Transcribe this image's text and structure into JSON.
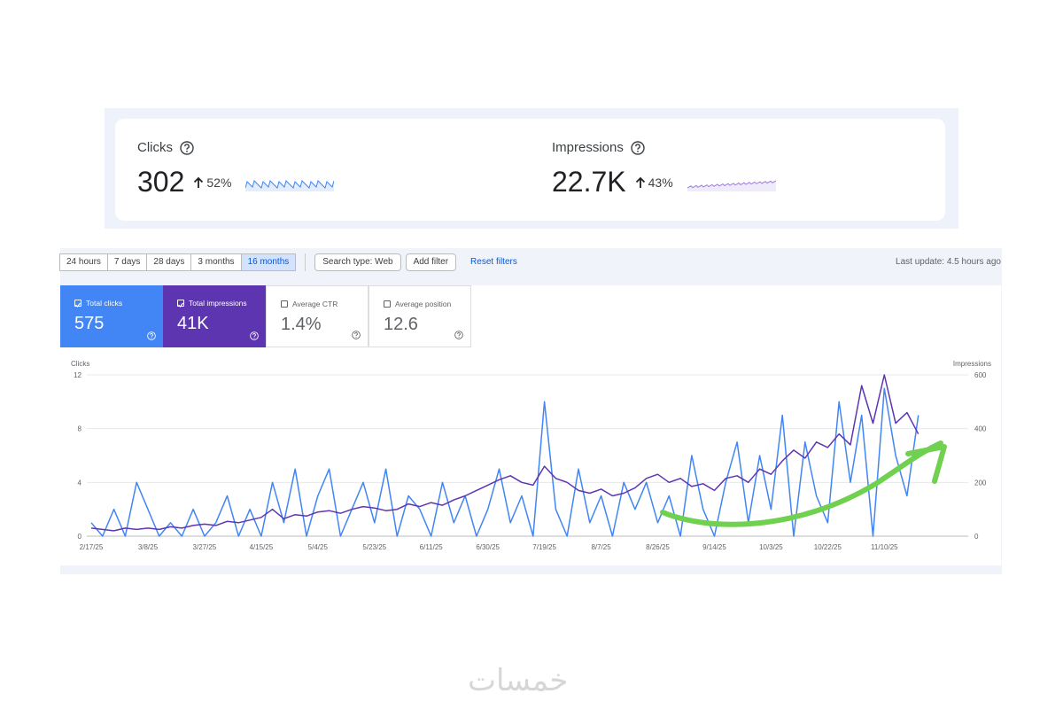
{
  "summary": {
    "cards": [
      {
        "label": "Clicks",
        "value": "302",
        "change": "52%",
        "color": "#4285f4"
      },
      {
        "label": "Impressions",
        "value": "22.7K",
        "change": "43%",
        "color": "#9c7be0"
      }
    ]
  },
  "toolbar": {
    "ranges": [
      "24 hours",
      "7 days",
      "28 days",
      "3 months",
      "16 months"
    ],
    "selected_range": 4,
    "search_type": "Search type: Web",
    "add_filter": "Add filter",
    "reset": "Reset filters",
    "last_update": "Last update: 4.5 hours ago"
  },
  "metrics": [
    {
      "label": "Total clicks",
      "value": "575",
      "checked": true,
      "color": "#4285f4"
    },
    {
      "label": "Total impressions",
      "value": "41K",
      "checked": true,
      "color": "#5e35b1"
    },
    {
      "label": "Average CTR",
      "value": "1.4%",
      "checked": false,
      "color": "#ffffff"
    },
    {
      "label": "Average position",
      "value": "12.6",
      "checked": false,
      "color": "#ffffff"
    }
  ],
  "chart_data": {
    "type": "line",
    "y_label": "Clicks",
    "y2_label": "Impressions",
    "categories": [
      "2/17/25",
      null,
      null,
      null,
      null,
      "3/8/25",
      null,
      null,
      null,
      null,
      "3/27/25",
      null,
      null,
      null,
      null,
      "4/15/25",
      null,
      null,
      null,
      null,
      "5/4/25",
      null,
      null,
      null,
      null,
      "5/23/25",
      null,
      null,
      null,
      null,
      "6/11/25",
      null,
      null,
      null,
      null,
      "6/30/25",
      null,
      null,
      null,
      null,
      "7/19/25",
      null,
      null,
      null,
      null,
      "8/7/25",
      null,
      null,
      null,
      null,
      "8/26/25",
      null,
      null,
      null,
      null,
      "9/14/25",
      null,
      null,
      null,
      null,
      "10/3/25",
      null,
      null,
      null,
      null,
      "10/22/25",
      null,
      null,
      null,
      null,
      "11/10/25",
      null,
      null,
      null
    ],
    "series": [
      {
        "color": "#4285f4",
        "values": [
          1,
          0,
          2,
          0,
          4,
          2,
          0,
          1,
          0,
          2,
          0,
          1,
          3,
          0,
          2,
          0,
          4,
          1,
          5,
          0,
          3,
          5,
          0,
          2,
          4,
          1,
          5,
          0,
          3,
          2,
          0,
          4,
          1,
          3,
          0,
          2,
          5,
          1,
          3,
          0,
          10,
          2,
          0,
          5,
          1,
          3,
          0,
          4,
          2,
          4,
          1,
          3,
          0,
          6,
          2,
          0,
          4,
          7,
          1,
          6,
          2,
          9,
          0,
          7,
          3,
          1,
          10,
          4,
          9,
          0,
          11,
          6,
          3,
          9
        ]
      },
      {
        "color": "#5e35b1",
        "axis": "y2",
        "values": [
          30,
          25,
          20,
          30,
          25,
          30,
          25,
          35,
          30,
          40,
          45,
          40,
          55,
          50,
          60,
          70,
          100,
          65,
          80,
          75,
          90,
          95,
          85,
          100,
          110,
          105,
          95,
          100,
          120,
          110,
          125,
          115,
          135,
          150,
          170,
          190,
          210,
          225,
          200,
          190,
          260,
          215,
          200,
          170,
          160,
          175,
          150,
          160,
          180,
          215,
          230,
          200,
          215,
          185,
          195,
          170,
          215,
          225,
          200,
          250,
          230,
          280,
          320,
          290,
          350,
          330,
          380,
          340,
          560,
          420,
          600,
          420,
          460,
          380
        ]
      }
    ],
    "ylim": [
      0,
      12
    ],
    "yticks": [
      0,
      4,
      8,
      12
    ],
    "y2lim": [
      0,
      600
    ],
    "y2ticks": [
      0,
      200,
      400,
      600
    ],
    "grid": true
  },
  "watermark": "خمسات"
}
